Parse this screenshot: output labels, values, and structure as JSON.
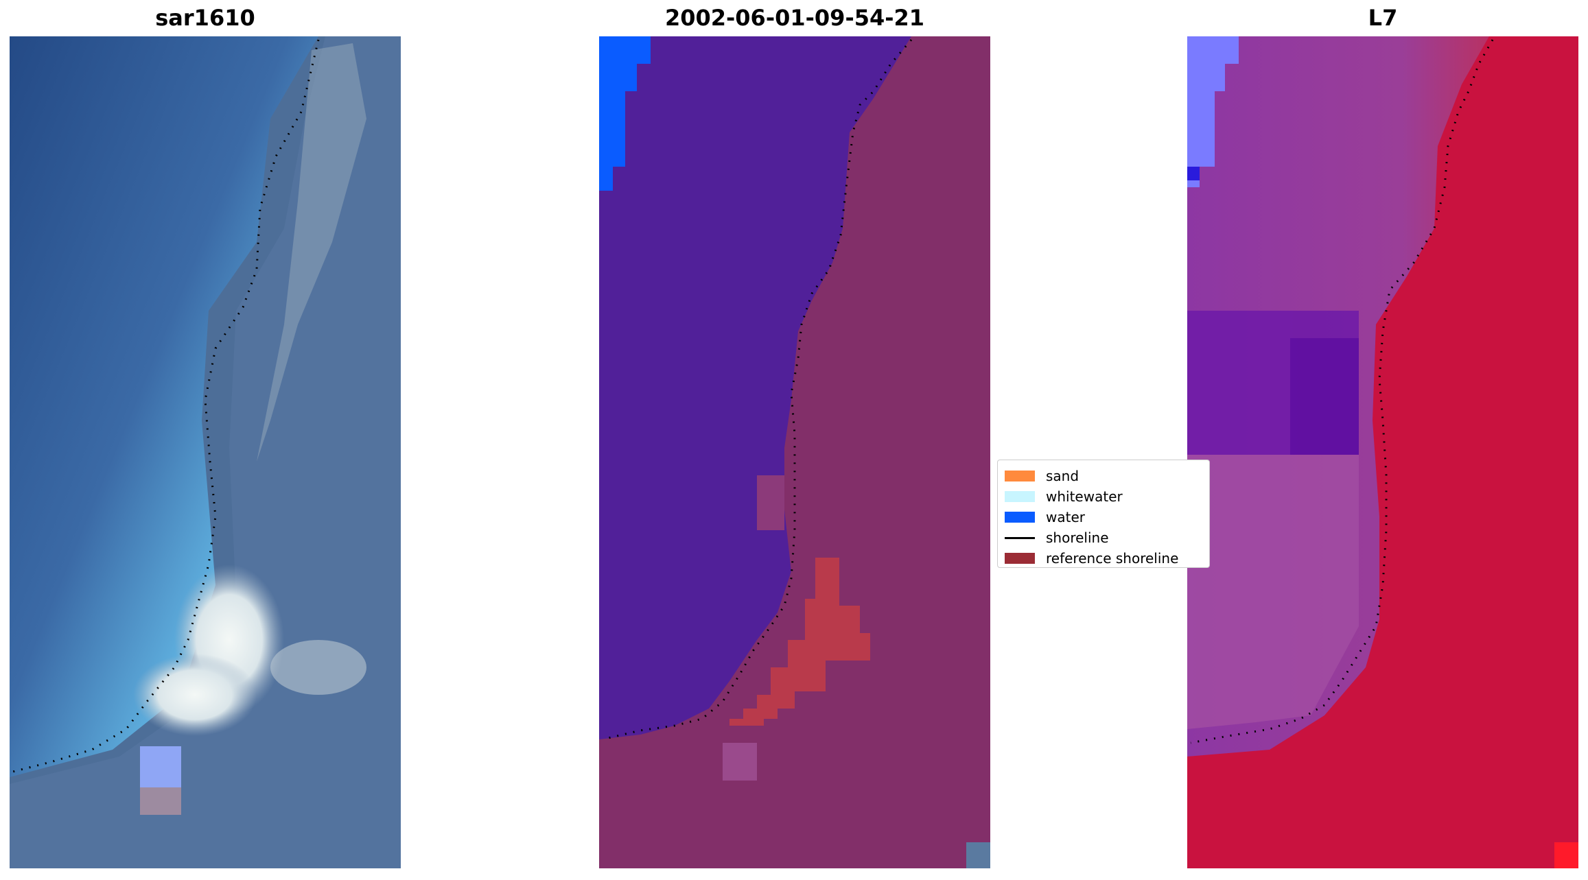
{
  "panels": [
    {
      "title": "sar1610"
    },
    {
      "title": "2002-06-01-09-54-21"
    },
    {
      "title": "L7"
    }
  ],
  "legend": {
    "entries": [
      {
        "label": "sand",
        "color": "#ff8a3d",
        "kind": "patch"
      },
      {
        "label": "whitewater",
        "color": "#c8f5ff",
        "kind": "patch"
      },
      {
        "label": "water",
        "color": "#0a5cff",
        "kind": "patch"
      },
      {
        "label": "shoreline",
        "color": "#000000",
        "kind": "line"
      },
      {
        "label": "reference shoreline",
        "color": "#9b2c35",
        "kind": "patch"
      }
    ]
  },
  "colors": {
    "ocean_dark": "#2e5189",
    "ocean_light": "#5ab0e0",
    "land_grey": "#4f6f97",
    "whitewater_rgb": "#e8f0f0",
    "classified_water": "#512099",
    "classified_land": "#7a2a62",
    "classified_sand_overlay": "#b93a4b",
    "classified_blue": "#0a5cff",
    "l7_purple": "#8c2d9c",
    "l7_red": "#c70b3d",
    "l7_blue": "#7a7bff"
  }
}
